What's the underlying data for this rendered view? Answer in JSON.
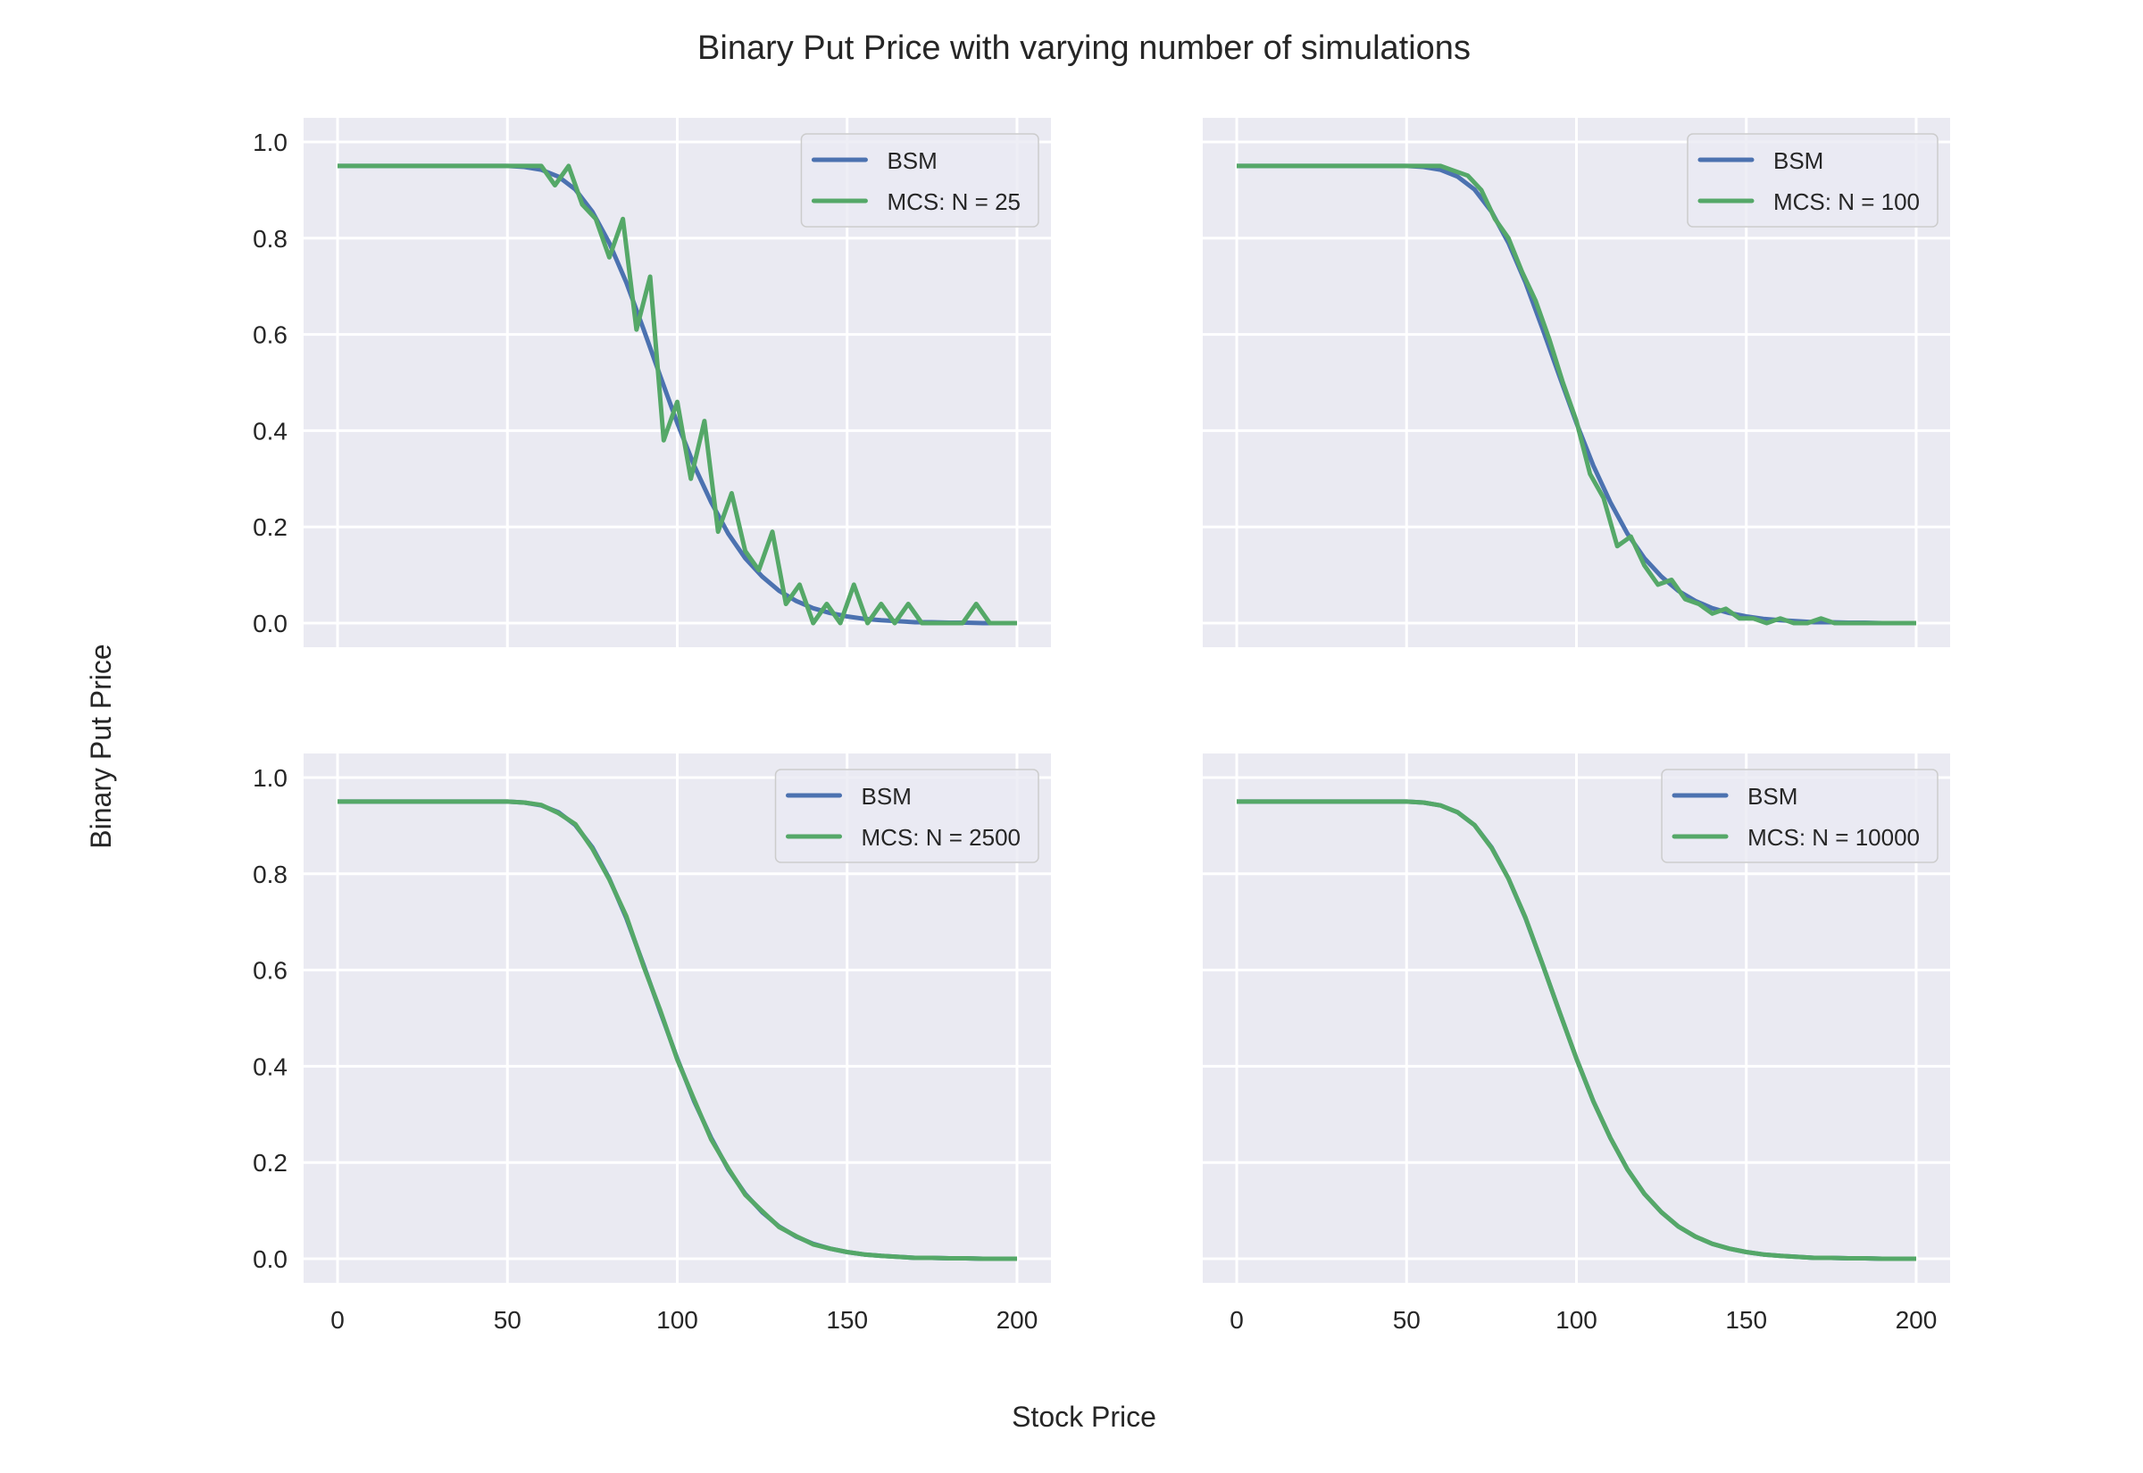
{
  "chart_data": {
    "type": "line",
    "title": "Binary Put Price with varying number of simulations",
    "xlabel": "Stock Price",
    "ylabel": "Binary Put Price",
    "xlim": [
      -10,
      210
    ],
    "ylim": [
      -0.05,
      1.05
    ],
    "xticks": [
      0,
      50,
      100,
      150,
      200
    ],
    "yticks": [
      0.0,
      0.2,
      0.4,
      0.6,
      0.8,
      1.0
    ],
    "xtick_labels": [
      "0",
      "50",
      "100",
      "150",
      "200"
    ],
    "ytick_labels": [
      "0.0",
      "0.2",
      "0.4",
      "0.6",
      "0.8",
      "1.0"
    ],
    "grid": true,
    "legend_placement": "top-right",
    "colors": {
      "BSM": "#4C72B0",
      "MCS": "#55A868",
      "background": "#EAEAF2",
      "grid": "#FFFFFF"
    },
    "bsm": {
      "name": "BSM",
      "x": [
        0,
        5,
        10,
        15,
        20,
        25,
        30,
        35,
        40,
        45,
        50,
        55,
        60,
        65,
        70,
        75,
        80,
        85,
        90,
        95,
        100,
        105,
        110,
        115,
        120,
        125,
        130,
        135,
        140,
        145,
        150,
        155,
        160,
        165,
        170,
        175,
        180,
        185,
        190,
        195,
        200
      ],
      "y": [
        0.95,
        0.95,
        0.95,
        0.95,
        0.95,
        0.95,
        0.95,
        0.95,
        0.95,
        0.95,
        0.95,
        0.948,
        0.942,
        0.928,
        0.901,
        0.855,
        0.79,
        0.708,
        0.612,
        0.513,
        0.416,
        0.327,
        0.251,
        0.186,
        0.135,
        0.097,
        0.067,
        0.046,
        0.031,
        0.021,
        0.014,
        0.009,
        0.006,
        0.004,
        0.002,
        0.002,
        0.001,
        0.001,
        0.0,
        0.0,
        0.0
      ]
    },
    "panels": [
      {
        "mcs_name": "MCS: N = 25",
        "x": [
          0,
          4,
          8,
          12,
          16,
          20,
          24,
          28,
          32,
          36,
          40,
          44,
          48,
          52,
          56,
          60,
          64,
          68,
          72,
          76,
          80,
          84,
          88,
          92,
          96,
          100,
          104,
          108,
          112,
          116,
          120,
          124,
          128,
          132,
          136,
          140,
          144,
          148,
          152,
          156,
          160,
          164,
          168,
          172,
          176,
          180,
          184,
          188,
          192,
          196,
          200
        ],
        "y": [
          0.95,
          0.95,
          0.95,
          0.95,
          0.95,
          0.95,
          0.95,
          0.95,
          0.95,
          0.95,
          0.95,
          0.95,
          0.95,
          0.95,
          0.95,
          0.95,
          0.91,
          0.95,
          0.87,
          0.84,
          0.76,
          0.84,
          0.61,
          0.72,
          0.38,
          0.46,
          0.3,
          0.42,
          0.19,
          0.27,
          0.15,
          0.11,
          0.19,
          0.04,
          0.08,
          0.0,
          0.04,
          0.0,
          0.08,
          0.0,
          0.04,
          0.0,
          0.04,
          0.0,
          0.0,
          0.0,
          0.0,
          0.04,
          0.0,
          0.0,
          0.0
        ]
      },
      {
        "mcs_name": "MCS: N = 100",
        "x": [
          0,
          4,
          8,
          12,
          16,
          20,
          24,
          28,
          32,
          36,
          40,
          44,
          48,
          52,
          56,
          60,
          64,
          68,
          72,
          76,
          80,
          84,
          88,
          92,
          96,
          100,
          104,
          108,
          112,
          116,
          120,
          124,
          128,
          132,
          136,
          140,
          144,
          148,
          152,
          156,
          160,
          164,
          168,
          172,
          176,
          180,
          184,
          188,
          192,
          196,
          200
        ],
        "y": [
          0.95,
          0.95,
          0.95,
          0.95,
          0.95,
          0.95,
          0.95,
          0.95,
          0.95,
          0.95,
          0.95,
          0.95,
          0.95,
          0.95,
          0.95,
          0.95,
          0.94,
          0.93,
          0.9,
          0.84,
          0.8,
          0.73,
          0.67,
          0.59,
          0.5,
          0.42,
          0.31,
          0.26,
          0.16,
          0.18,
          0.12,
          0.08,
          0.09,
          0.05,
          0.04,
          0.02,
          0.03,
          0.01,
          0.01,
          0.0,
          0.01,
          0.0,
          0.0,
          0.01,
          0.0,
          0.0,
          0.0,
          0.0,
          0.0,
          0.0,
          0.0
        ]
      },
      {
        "mcs_name": "MCS: N = 2500",
        "x": [
          0,
          5,
          10,
          15,
          20,
          25,
          30,
          35,
          40,
          45,
          50,
          55,
          60,
          65,
          70,
          75,
          80,
          85,
          90,
          95,
          100,
          105,
          110,
          115,
          120,
          125,
          130,
          135,
          140,
          145,
          150,
          155,
          160,
          165,
          170,
          175,
          180,
          185,
          190,
          195,
          200
        ],
        "y": [
          0.95,
          0.95,
          0.95,
          0.95,
          0.95,
          0.95,
          0.95,
          0.95,
          0.95,
          0.95,
          0.95,
          0.948,
          0.943,
          0.926,
          0.903,
          0.852,
          0.788,
          0.712,
          0.609,
          0.516,
          0.414,
          0.33,
          0.248,
          0.188,
          0.133,
          0.099,
          0.066,
          0.047,
          0.03,
          0.021,
          0.014,
          0.009,
          0.006,
          0.004,
          0.002,
          0.002,
          0.001,
          0.001,
          0.0,
          0.0,
          0.0
        ]
      },
      {
        "mcs_name": "MCS: N = 10000",
        "x": [
          0,
          5,
          10,
          15,
          20,
          25,
          30,
          35,
          40,
          45,
          50,
          55,
          60,
          65,
          70,
          75,
          80,
          85,
          90,
          95,
          100,
          105,
          110,
          115,
          120,
          125,
          130,
          135,
          140,
          145,
          150,
          155,
          160,
          165,
          170,
          175,
          180,
          185,
          190,
          195,
          200
        ],
        "y": [
          0.95,
          0.95,
          0.95,
          0.95,
          0.95,
          0.95,
          0.95,
          0.95,
          0.95,
          0.95,
          0.95,
          0.948,
          0.942,
          0.928,
          0.901,
          0.854,
          0.79,
          0.709,
          0.612,
          0.513,
          0.416,
          0.327,
          0.251,
          0.186,
          0.135,
          0.097,
          0.067,
          0.046,
          0.031,
          0.021,
          0.014,
          0.009,
          0.006,
          0.004,
          0.002,
          0.002,
          0.001,
          0.001,
          0.0,
          0.0,
          0.0
        ]
      }
    ]
  }
}
